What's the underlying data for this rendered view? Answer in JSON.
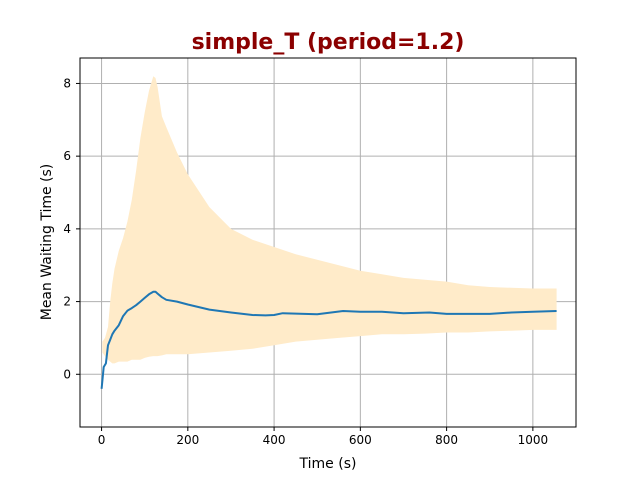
{
  "chart_data": {
    "type": "line",
    "title": "simple_T (period=1.2)",
    "xlabel": "Time (s)",
    "ylabel": "Mean Waiting Time (s)",
    "xlim": [
      -50,
      1100
    ],
    "ylim": [
      -1.45,
      8.7
    ],
    "xticks": [
      0,
      200,
      400,
      600,
      800,
      1000
    ],
    "yticks": [
      0,
      2,
      4,
      6,
      8
    ],
    "grid": true,
    "title_color": "#8b0000",
    "series": [
      {
        "type": "line",
        "color": "#1f77b4",
        "x": [
          0,
          5,
          10,
          15,
          20,
          25,
          30,
          40,
          50,
          60,
          70,
          80,
          90,
          100,
          110,
          120,
          125,
          130,
          140,
          150,
          175,
          200,
          250,
          300,
          350,
          380,
          400,
          420,
          500,
          560,
          600,
          650,
          700,
          760,
          800,
          900,
          950,
          1000,
          1055
        ],
        "y": [
          -0.4,
          0.2,
          0.3,
          0.8,
          0.95,
          1.1,
          1.2,
          1.35,
          1.6,
          1.75,
          1.82,
          1.9,
          2.0,
          2.1,
          2.2,
          2.27,
          2.27,
          2.22,
          2.12,
          2.05,
          2.0,
          1.92,
          1.78,
          1.7,
          1.63,
          1.62,
          1.63,
          1.68,
          1.65,
          1.74,
          1.72,
          1.72,
          1.68,
          1.7,
          1.66,
          1.66,
          1.7,
          1.72,
          1.74
        ]
      },
      {
        "type": "band",
        "color": "#ffebc9",
        "x": [
          2,
          8,
          15,
          20,
          25,
          30,
          40,
          50,
          60,
          70,
          80,
          90,
          100,
          110,
          120,
          125,
          130,
          140,
          150,
          175,
          200,
          250,
          300,
          350,
          400,
          450,
          500,
          550,
          600,
          650,
          700,
          750,
          800,
          850,
          900,
          950,
          1000,
          1055
        ],
        "upper": [
          0.9,
          1.0,
          1.3,
          2.0,
          2.5,
          2.9,
          3.4,
          3.75,
          4.2,
          4.8,
          5.6,
          6.5,
          7.2,
          7.8,
          8.2,
          8.15,
          7.9,
          7.1,
          6.8,
          6.1,
          5.5,
          4.6,
          4.0,
          3.7,
          3.5,
          3.3,
          3.15,
          3.0,
          2.85,
          2.75,
          2.65,
          2.6,
          2.55,
          2.45,
          2.4,
          2.38,
          2.36,
          2.36
        ],
        "lower": [
          0.6,
          0.5,
          0.4,
          0.35,
          0.3,
          0.3,
          0.35,
          0.35,
          0.35,
          0.4,
          0.4,
          0.4,
          0.45,
          0.48,
          0.5,
          0.5,
          0.5,
          0.52,
          0.55,
          0.55,
          0.55,
          0.6,
          0.65,
          0.7,
          0.8,
          0.9,
          0.95,
          1.0,
          1.05,
          1.1,
          1.1,
          1.12,
          1.15,
          1.15,
          1.18,
          1.2,
          1.22,
          1.22
        ]
      }
    ]
  }
}
